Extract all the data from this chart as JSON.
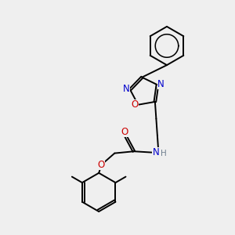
{
  "bg_color": "#efefef",
  "bond_color": "#000000",
  "N_color": "#0000cc",
  "O_color": "#cc0000",
  "H_color": "#708090",
  "font_size": 8.5,
  "line_width": 1.4,
  "figsize": [
    3.0,
    3.0
  ],
  "dpi": 100,
  "xlim": [
    0,
    10
  ],
  "ylim": [
    0,
    10
  ]
}
